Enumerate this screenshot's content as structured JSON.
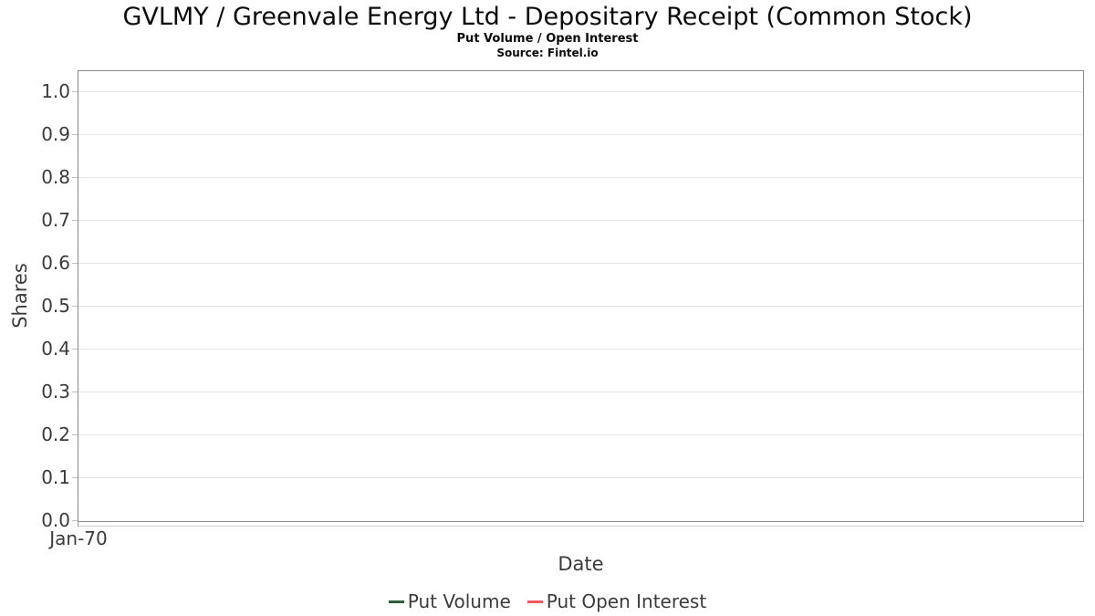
{
  "figure": {
    "title": "GVLMY / Greenvale Energy Ltd - Depositary Receipt (Common Stock)",
    "subtitle": "Put Volume / Open Interest",
    "source": "Source: Fintel.io"
  },
  "chart_data": {
    "type": "line",
    "title": "GVLMY / Greenvale Energy Ltd - Depositary Receipt (Common Stock)",
    "subtitle": "Put Volume / Open Interest",
    "source_note": "Source: Fintel.io",
    "xlabel": "Date",
    "ylabel": "Shares",
    "ylim": [
      0.0,
      1.0
    ],
    "yticks": [
      0.0,
      0.1,
      0.2,
      0.3,
      0.4,
      0.5,
      0.6,
      0.7,
      0.8,
      0.9,
      1.0
    ],
    "ytick_labels": [
      "0.0",
      "0.1",
      "0.2",
      "0.3",
      "0.4",
      "0.5",
      "0.6",
      "0.7",
      "0.8",
      "0.9",
      "1.0"
    ],
    "xtick_labels": [
      "Jan-70"
    ],
    "grid": "horizontal-only",
    "legend_position": "bottom-center",
    "series": [
      {
        "name": "Put Volume",
        "color": "#2d5f3a",
        "x": [],
        "values": []
      },
      {
        "name": "Put Open Interest",
        "color": "#f4555c",
        "x": [],
        "values": []
      }
    ],
    "colors": {
      "plot_border": "#898989",
      "gridline": "#e6e6e6",
      "tick_mark": "#bdbdbd",
      "axis_text": "#3b3b3b",
      "title_text": "#0a0a0a"
    }
  }
}
